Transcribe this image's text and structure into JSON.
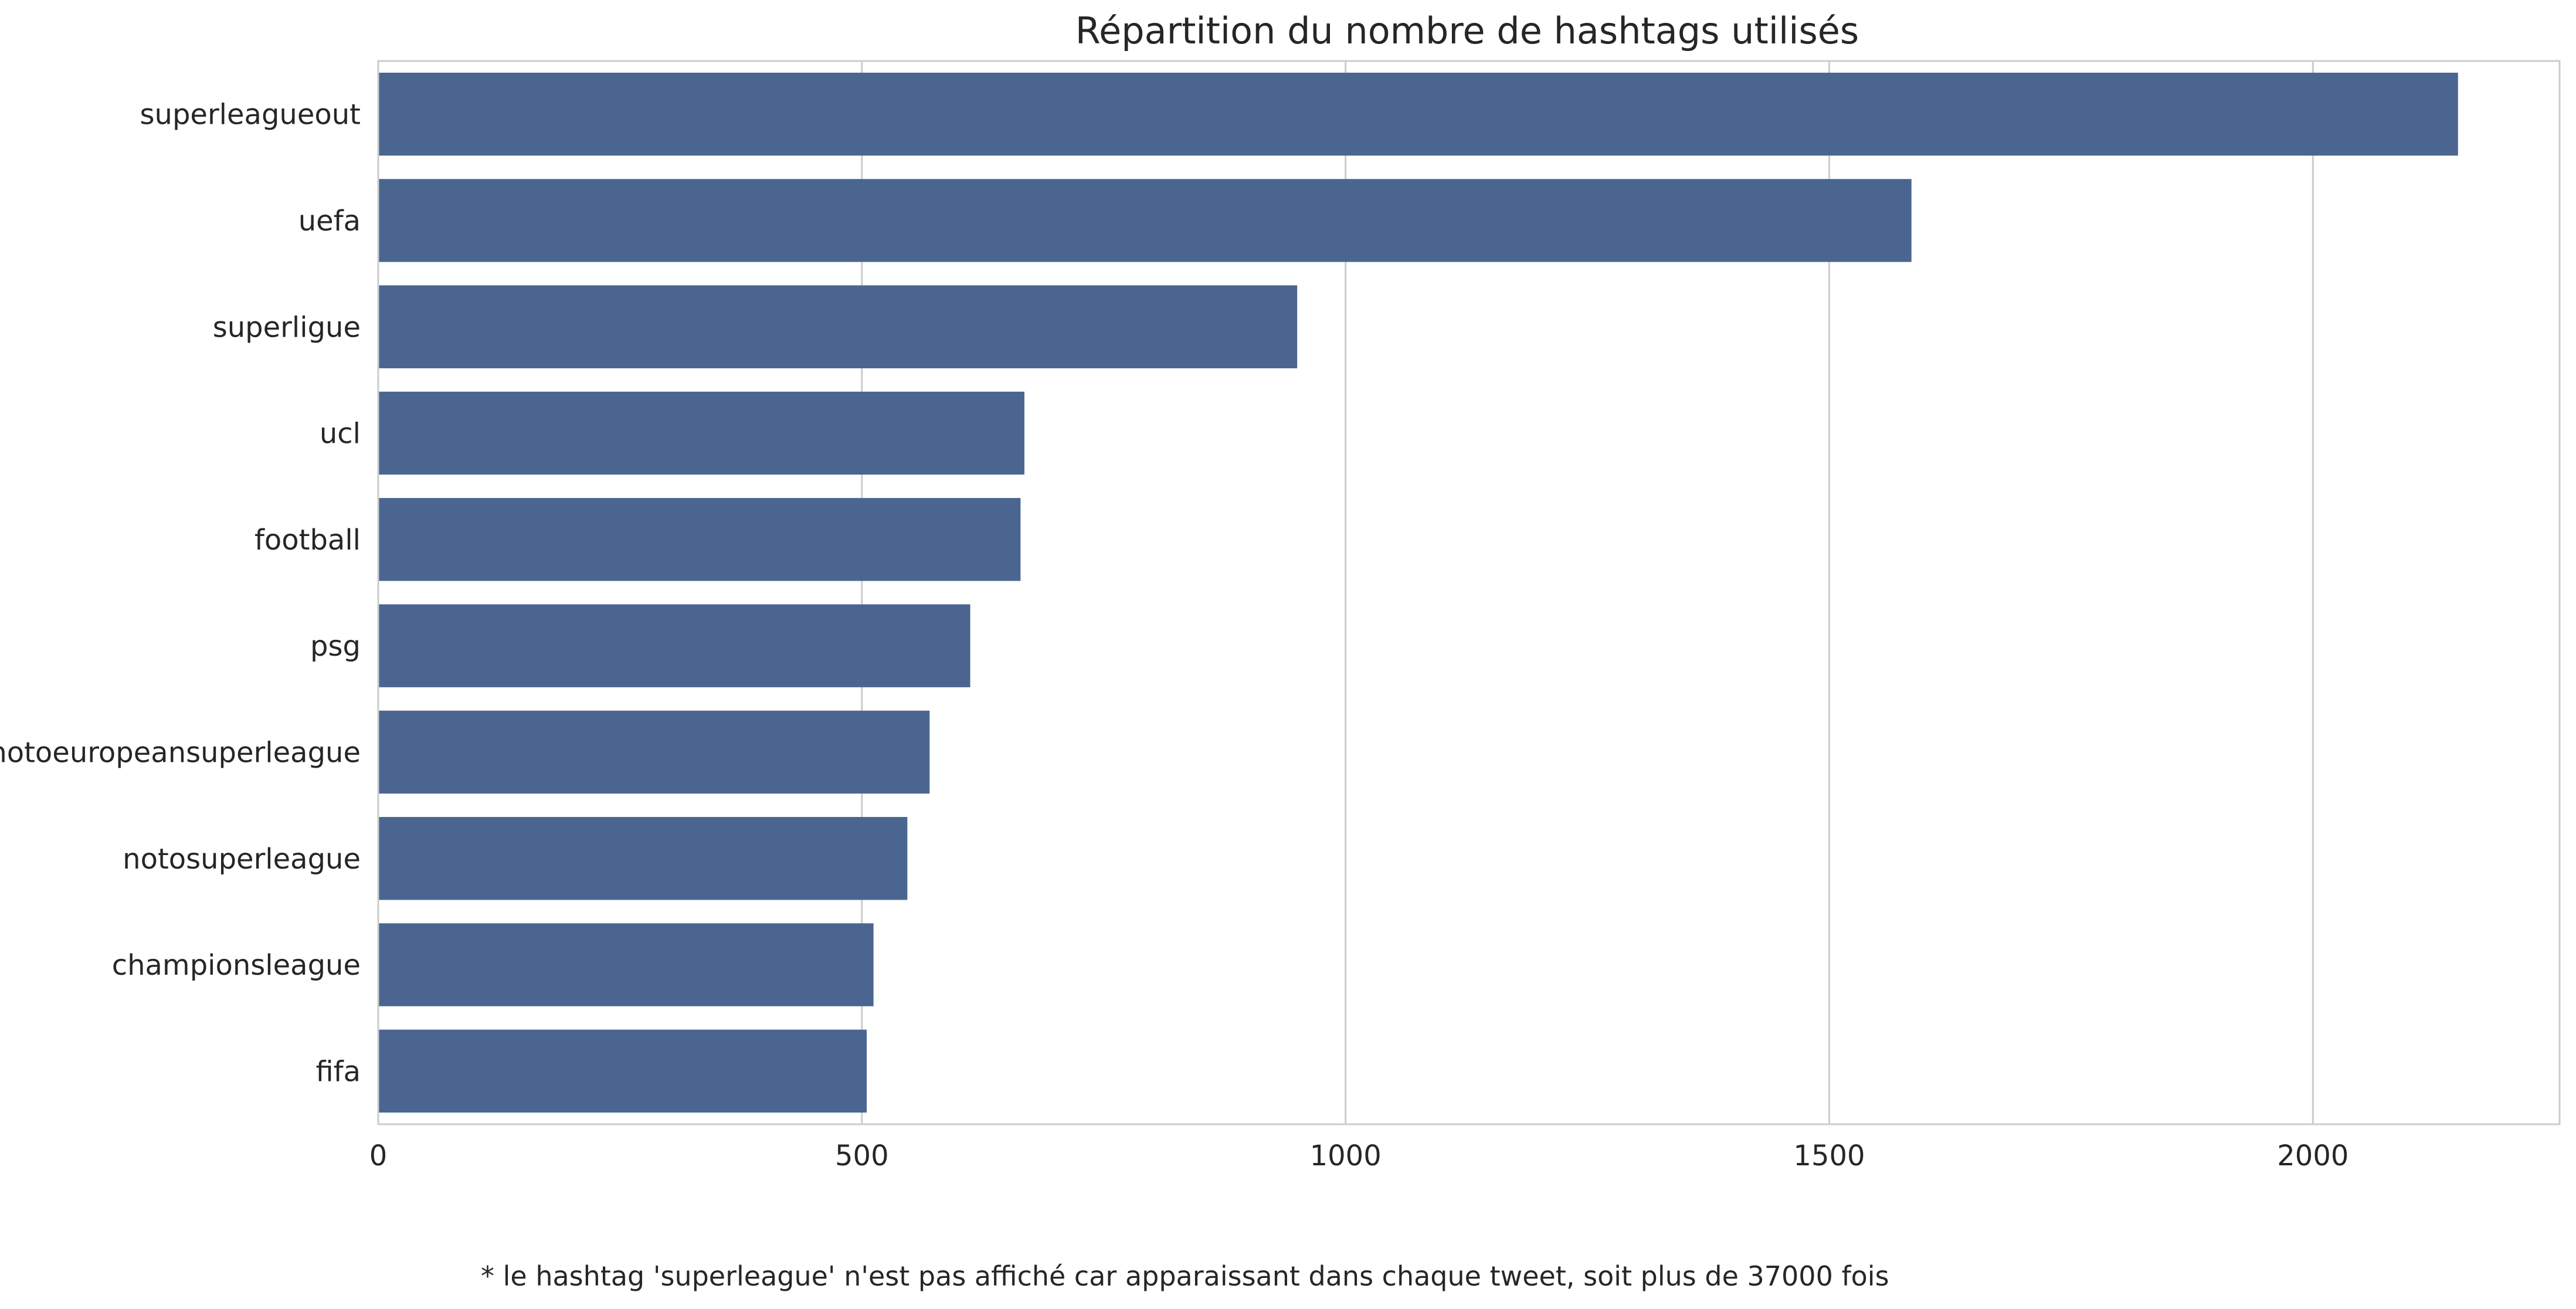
{
  "chart_data": {
    "type": "bar",
    "orientation": "horizontal",
    "title": "Répartition du nombre de hashtags utilisés",
    "xlabel": "",
    "ylabel": "",
    "categories": [
      "superleagueout",
      "uefa",
      "superligue",
      "ucl",
      "football",
      "psg",
      "notoeuropeansuperleague",
      "notosuperleague",
      "championsleague",
      "fifa"
    ],
    "values": [
      2150,
      1585,
      950,
      668,
      664,
      612,
      570,
      547,
      512,
      505
    ],
    "xlim": [
      0,
      2255
    ],
    "xticks": [
      0,
      500,
      1000,
      1500,
      2000
    ],
    "xtick_labels": [
      "0",
      "500",
      "1000",
      "1500",
      "2000"
    ],
    "grid": "vertical",
    "bar_color": "#4a6690",
    "grid_color": "#cccccc",
    "footnote": "* le hashtag 'superleague' n'est pas affiché car apparaissant dans chaque tweet, soit plus de 37000 fois"
  }
}
